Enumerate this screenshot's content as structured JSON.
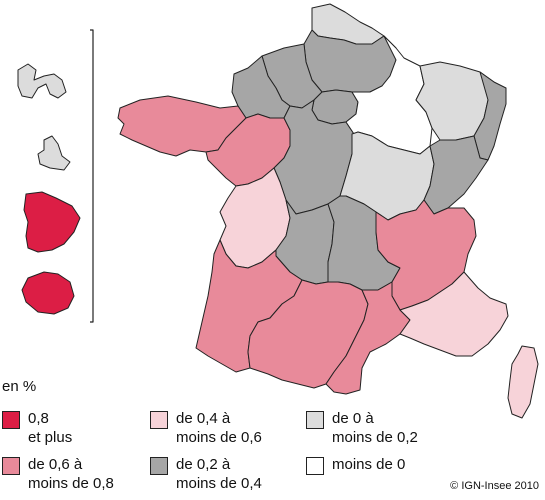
{
  "legend": {
    "unit": "en %",
    "classes": [
      {
        "id": "c1",
        "label": "0,8\net plus",
        "color": "#dc1e45"
      },
      {
        "id": "c2",
        "label": "de 0,6 à\nmoins de 0,8",
        "color": "#e88a9a"
      },
      {
        "id": "c3",
        "label": "de 0,4 à\nmoins de 0,6",
        "color": "#f7d3d9"
      },
      {
        "id": "c4",
        "label": "de 0,2 à\nmoins de 0,4",
        "color": "#a6a6a6"
      },
      {
        "id": "c5",
        "label": "de 0 à\nmoins de 0,2",
        "color": "#dcdcdc"
      },
      {
        "id": "c6",
        "label": "moins de 0",
        "color": "#ffffff"
      }
    ]
  },
  "credit": "© IGN-Insee 2010"
}
